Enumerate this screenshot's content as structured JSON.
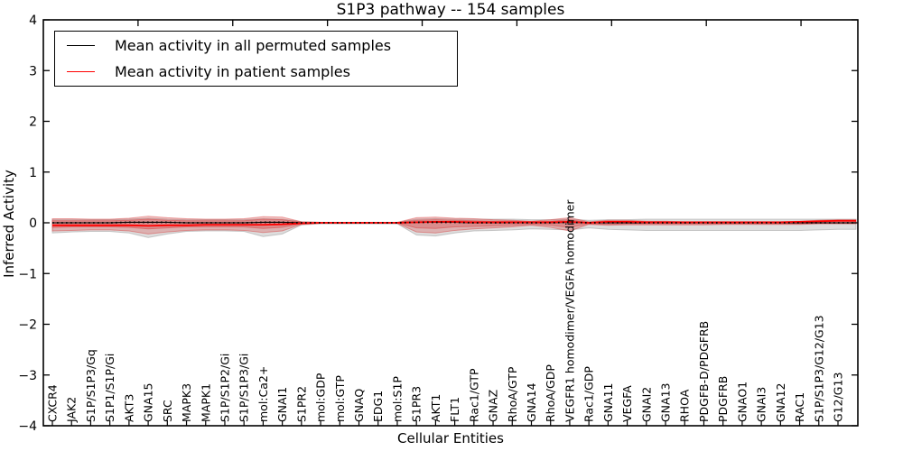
{
  "chart_data": {
    "type": "line",
    "title": "S1P3 pathway -- 154 samples",
    "xlabel": "Cellular Entities",
    "ylabel": "Inferred Activity",
    "ylim": [
      -4,
      4
    ],
    "ytick_values": [
      4,
      3,
      2,
      1,
      0,
      -1,
      -2,
      -3,
      -4
    ],
    "ytick_labels": [
      "4",
      "3",
      "2",
      "1",
      "0",
      "−1",
      "−2",
      "−3",
      "−4"
    ],
    "top_xtick_units": [
      5,
      10,
      15,
      20,
      25,
      30,
      35,
      40
    ],
    "xaxis_units": 43,
    "grid": false,
    "legend_position": "upper left",
    "categories": [
      "CXCR4",
      "JAK2",
      "S1P/S1P3/Gq",
      "S1P1/S1P/Gi",
      "AKT3",
      "GNA15",
      "SRC",
      "MAPK3",
      "MAPK1",
      "S1P/S1P2/Gi",
      "S1P/S1P3/Gi",
      "mol:Ca2+",
      "GNAI1",
      "S1PR2",
      "mol:GDP",
      "mol:GTP",
      "GNAQ",
      "EDG1",
      "mol:S1P",
      "S1PR3",
      "AKT1",
      "FLT1",
      "Rac1/GTP",
      "GNAZ",
      "RhoA/GTP",
      "GNA14",
      "RhoA/GDP",
      "VEGFR1 homodimer/VEGFA homodimer",
      "Rac1/GDP",
      "GNA11",
      "VEGFA",
      "GNAI2",
      "GNA13",
      "RHOA",
      "PDGFB-D/PDGFRB",
      "PDGFRB",
      "GNAO1",
      "GNAI3",
      "GNA12",
      "RAC1",
      "S1P/S1P3/G12/G13",
      "G12/G13"
    ],
    "series": [
      {
        "name": "Mean activity in all permuted samples",
        "color": "#000000",
        "style": "dotted",
        "values": [
          0,
          0,
          0,
          0,
          0.01,
          0.01,
          0.01,
          0,
          0,
          0,
          0,
          0.01,
          0.01,
          0,
          0,
          0,
          0,
          0,
          0,
          0.01,
          0.01,
          0.01,
          0,
          0,
          0,
          0,
          0,
          0.01,
          0,
          0,
          0,
          0,
          0,
          0,
          0,
          0,
          0,
          0,
          0,
          0,
          0,
          0
        ]
      },
      {
        "name": "Mean activity in patient samples",
        "color": "#ff0000",
        "style": "solid",
        "values": [
          -0.05,
          -0.05,
          -0.05,
          -0.05,
          -0.05,
          -0.06,
          -0.05,
          -0.05,
          -0.04,
          -0.04,
          -0.04,
          -0.04,
          -0.03,
          -0.01,
          0,
          0,
          0,
          0,
          0,
          0.01,
          0.02,
          0.02,
          0.01,
          0.01,
          0.01,
          0.01,
          0.01,
          0.02,
          0,
          0.02,
          0.02,
          0.01,
          0.01,
          0.01,
          0.01,
          0.01,
          0.01,
          0.01,
          0.01,
          0.02,
          0.03,
          0.04
        ]
      }
    ],
    "bands": [
      {
        "name": "permuted-samples-range",
        "color": "#999999",
        "opacity": 0.32,
        "upper": [
          0.06,
          0.06,
          0.06,
          0.06,
          0.07,
          0.09,
          0.07,
          0.06,
          0.06,
          0.06,
          0.06,
          0.08,
          0.07,
          0.02,
          0.01,
          0.01,
          0.01,
          0.01,
          0.01,
          0.07,
          0.08,
          0.07,
          0.07,
          0.07,
          0.07,
          0.06,
          0.06,
          0.07,
          0.05,
          0.06,
          0.06,
          0.07,
          0.07,
          0.07,
          0.07,
          0.07,
          0.07,
          0.07,
          0.07,
          0.07,
          0.07,
          0.07
        ],
        "lower": [
          -0.2,
          -0.18,
          -0.17,
          -0.17,
          -0.2,
          -0.29,
          -0.22,
          -0.17,
          -0.16,
          -0.16,
          -0.17,
          -0.27,
          -0.22,
          -0.04,
          -0.02,
          -0.02,
          -0.02,
          -0.02,
          -0.02,
          -0.24,
          -0.26,
          -0.2,
          -0.16,
          -0.15,
          -0.14,
          -0.12,
          -0.13,
          -0.14,
          -0.1,
          -0.13,
          -0.14,
          -0.15,
          -0.15,
          -0.15,
          -0.15,
          -0.15,
          -0.15,
          -0.15,
          -0.15,
          -0.15,
          -0.14,
          -0.13
        ]
      },
      {
        "name": "patient-samples-range-outer",
        "color": "#d83c3c",
        "opacity": 0.28,
        "upper": [
          0.08,
          0.08,
          0.07,
          0.07,
          0.09,
          0.13,
          0.1,
          0.08,
          0.07,
          0.07,
          0.08,
          0.12,
          0.11,
          0.02,
          0.01,
          0.01,
          0.01,
          0.01,
          0.01,
          0.1,
          0.11,
          0.09,
          0.08,
          0.06,
          0.05,
          0.03,
          0.06,
          0.1,
          0.02,
          0.05,
          0.05,
          0.03,
          0.03,
          0.02,
          0.02,
          0.02,
          0.02,
          0.02,
          0.02,
          0.03,
          0.05,
          0.06
        ],
        "lower": [
          -0.16,
          -0.15,
          -0.14,
          -0.14,
          -0.16,
          -0.22,
          -0.18,
          -0.15,
          -0.14,
          -0.14,
          -0.15,
          -0.19,
          -0.16,
          -0.03,
          -0.01,
          -0.01,
          -0.01,
          -0.01,
          -0.01,
          -0.18,
          -0.2,
          -0.15,
          -0.12,
          -0.1,
          -0.08,
          -0.05,
          -0.09,
          -0.16,
          -0.03,
          -0.05,
          -0.04,
          -0.04,
          -0.04,
          -0.04,
          -0.04,
          -0.03,
          -0.03,
          -0.03,
          -0.03,
          -0.03,
          -0.02,
          -0.02
        ]
      },
      {
        "name": "patient-samples-range-inner",
        "color": "#d83c3c",
        "opacity": 0.3,
        "upper": [
          0.04,
          0.04,
          0.04,
          0.04,
          0.05,
          0.07,
          0.05,
          0.04,
          0.04,
          0.04,
          0.04,
          0.07,
          0.06,
          0.01,
          0.005,
          0.005,
          0.005,
          0.005,
          0.005,
          0.05,
          0.06,
          0.05,
          0.04,
          0.03,
          0.03,
          0.02,
          0.03,
          0.06,
          0.01,
          0.03,
          0.03,
          0.02,
          0.02,
          0.01,
          0.01,
          0.01,
          0.01,
          0.01,
          0.01,
          0.02,
          0.03,
          0.03
        ],
        "lower": [
          -0.09,
          -0.08,
          -0.08,
          -0.08,
          -0.09,
          -0.12,
          -0.1,
          -0.08,
          -0.08,
          -0.08,
          -0.08,
          -0.11,
          -0.09,
          -0.02,
          -0.005,
          -0.005,
          -0.005,
          -0.005,
          -0.005,
          -0.1,
          -0.11,
          -0.08,
          -0.07,
          -0.06,
          -0.05,
          -0.03,
          -0.05,
          -0.09,
          -0.02,
          -0.03,
          -0.02,
          -0.02,
          -0.02,
          -0.02,
          -0.02,
          -0.02,
          -0.02,
          -0.02,
          -0.02,
          -0.02,
          -0.01,
          -0.01
        ]
      }
    ]
  }
}
